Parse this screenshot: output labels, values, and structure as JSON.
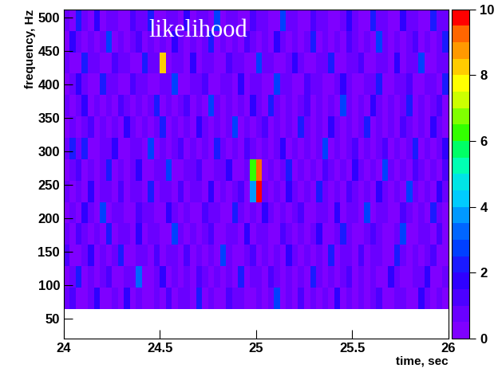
{
  "chart_data": {
    "type": "heatmap",
    "title": "likelihood",
    "xlabel": "time, sec",
    "ylabel": "frequency, Hz",
    "xlim": [
      24,
      26
    ],
    "ylim": [
      20,
      512
    ],
    "xticks": [
      24,
      24.5,
      25,
      25.5,
      26
    ],
    "yticks": [
      50,
      100,
      150,
      200,
      250,
      300,
      350,
      400,
      450,
      500
    ],
    "x_bins": [
      24,
      24.03125,
      24.0625,
      24.09375,
      24.125,
      24.15625,
      24.1875,
      24.21875,
      24.25,
      24.28125,
      24.3125,
      24.34375,
      24.375,
      24.40625,
      24.4375,
      24.46875,
      24.5,
      24.53125,
      24.5625,
      24.59375,
      24.625,
      24.65625,
      24.6875,
      24.71875,
      24.75,
      24.78125,
      24.8125,
      24.84375,
      24.875,
      24.90625,
      24.9375,
      24.96875,
      25,
      25.03125,
      25.0625,
      25.09375,
      25.125,
      25.15625,
      25.1875,
      25.21875,
      25.25,
      25.28125,
      25.3125,
      25.34375,
      25.375,
      25.40625,
      25.4375,
      25.46875,
      25.5,
      25.53125,
      25.5625,
      25.59375,
      25.625,
      25.65625,
      25.6875,
      25.71875,
      25.75,
      25.78125,
      25.8125,
      25.84375,
      25.875,
      25.90625,
      25.9375,
      25.96875,
      26
    ],
    "y_bins": [
      64,
      96,
      128,
      160,
      192,
      224,
      256,
      288,
      320,
      352,
      384,
      416,
      448,
      480,
      512
    ],
    "cells": [
      [
        0.6,
        1.2,
        0.3,
        0.4,
        0.5,
        1.8,
        0.4,
        0.3,
        0.5,
        0.4,
        1.5,
        0.3,
        0.6,
        0.4,
        0.3,
        0.5,
        0.4,
        1.1,
        0.3,
        0.5,
        0.6,
        0.4,
        2.1,
        0.3,
        0.5,
        0.4,
        0.3,
        1.4,
        0.5,
        0.6,
        0.4,
        0.3,
        0.5,
        0.4,
        0.6,
        2.6,
        0.3,
        0.5,
        0.4,
        1.2,
        0.3,
        0.5,
        0.4,
        0.6,
        0.3,
        1.6,
        0.4,
        0.5,
        0.3,
        0.6,
        0.4,
        0.5,
        1.3,
        0.4,
        0.3,
        0.5,
        0.6,
        0.4,
        0.3,
        1.9,
        0.5,
        0.4,
        0.6,
        0.3
      ],
      [
        0.4,
        0.5,
        2.4,
        0.3,
        0.6,
        0.4,
        0.5,
        1.3,
        0.3,
        0.4,
        0.6,
        0.5,
        3.1,
        0.4,
        0.3,
        0.5,
        1.7,
        0.4,
        0.5,
        0.3,
        0.6,
        0.4,
        1.2,
        0.5,
        0.3,
        0.5,
        0.4,
        0.6,
        0.3,
        2.0,
        0.4,
        0.5,
        0.6,
        0.3,
        1.4,
        0.5,
        0.4,
        0.6,
        0.3,
        0.5,
        0.4,
        2.2,
        0.5,
        0.3,
        0.6,
        0.4,
        0.5,
        1.1,
        0.3,
        0.5,
        0.4,
        0.6,
        0.3,
        0.4,
        1.8,
        0.5,
        0.4,
        0.3,
        0.6,
        0.5,
        1.5,
        0.4,
        0.3,
        0.6
      ],
      [
        1.1,
        0.4,
        0.3,
        0.5,
        1.6,
        0.4,
        0.6,
        0.3,
        0.5,
        2.3,
        0.4,
        0.3,
        0.6,
        0.5,
        0.4,
        1.2,
        0.3,
        0.5,
        0.6,
        0.4,
        1.4,
        0.3,
        0.5,
        0.4,
        0.6,
        0.3,
        2.8,
        0.5,
        0.4,
        0.3,
        0.6,
        1.3,
        0.4,
        0.5,
        0.3,
        0.6,
        0.4,
        1.7,
        0.5,
        0.3,
        0.6,
        0.4,
        0.5,
        0.3,
        2.1,
        0.4,
        0.6,
        0.5,
        0.3,
        1.2,
        0.4,
        0.5,
        0.6,
        0.3,
        0.4,
        2.4,
        0.5,
        0.3,
        0.6,
        0.4,
        0.5,
        1.1,
        0.3,
        0.4
      ],
      [
        0.5,
        0.3,
        1.3,
        0.6,
        0.4,
        0.5,
        0.3,
        2.0,
        0.4,
        0.6,
        0.5,
        0.3,
        1.5,
        0.4,
        0.5,
        0.6,
        0.3,
        0.4,
        2.5,
        0.5,
        0.3,
        0.6,
        0.4,
        0.5,
        1.2,
        0.3,
        0.4,
        0.6,
        0.5,
        0.3,
        1.8,
        0.4,
        0.5,
        0.6,
        0.3,
        0.4,
        1.1,
        0.5,
        0.3,
        0.6,
        0.4,
        0.5,
        1.6,
        0.3,
        0.4,
        0.6,
        2.2,
        0.5,
        0.3,
        0.4,
        0.5,
        1.3,
        0.6,
        0.3,
        0.4,
        0.5,
        2.7,
        0.4,
        0.3,
        0.5,
        0.6,
        0.4,
        1.4,
        0.3
      ],
      [
        0.3,
        0.6,
        0.4,
        1.5,
        0.5,
        0.3,
        2.9,
        0.4,
        0.6,
        0.5,
        0.3,
        0.4,
        1.2,
        0.6,
        0.5,
        0.3,
        0.4,
        1.9,
        0.6,
        0.3,
        0.5,
        0.4,
        0.3,
        1.4,
        0.5,
        0.6,
        0.4,
        0.3,
        2.3,
        0.5,
        0.4,
        0.6,
        0.3,
        1.6,
        0.5,
        0.4,
        0.6,
        0.3,
        0.5,
        1.1,
        0.4,
        0.3,
        0.6,
        0.5,
        0.4,
        1.8,
        0.3,
        0.6,
        0.5,
        0.4,
        2.6,
        0.3,
        0.5,
        0.6,
        0.4,
        0.3,
        1.3,
        0.5,
        0.4,
        0.6,
        0.3,
        2.0,
        0.5,
        0.4
      ],
      [
        0.6,
        0.4,
        0.5,
        0.3,
        1.7,
        0.4,
        0.6,
        0.5,
        0.3,
        1.3,
        0.4,
        0.6,
        0.5,
        0.3,
        2.1,
        0.4,
        0.5,
        0.6,
        0.3,
        1.4,
        0.4,
        0.5,
        0.6,
        0.3,
        1.9,
        0.4,
        0.5,
        0.3,
        0.6,
        1.2,
        0.4,
        3.6,
        9.8,
        0.5,
        0.3,
        0.6,
        0.4,
        1.5,
        0.5,
        0.3,
        0.6,
        0.4,
        2.4,
        0.5,
        0.3,
        0.6,
        0.4,
        1.1,
        0.5,
        0.3,
        0.6,
        0.4,
        1.8,
        0.5,
        0.3,
        0.6,
        0.4,
        2.9,
        0.5,
        0.3,
        0.6,
        0.4,
        1.6,
        0.5
      ],
      [
        0.4,
        0.5,
        1.4,
        0.3,
        0.6,
        0.4,
        0.5,
        2.2,
        0.3,
        0.6,
        0.4,
        0.5,
        1.6,
        0.3,
        0.4,
        0.6,
        0.5,
        2.7,
        0.3,
        0.4,
        0.6,
        0.5,
        1.3,
        0.4,
        0.3,
        0.6,
        0.5,
        1.8,
        0.4,
        0.3,
        0.6,
        6.0,
        9.4,
        0.4,
        0.6,
        0.3,
        0.5,
        2.0,
        0.4,
        0.6,
        0.3,
        0.5,
        0.4,
        1.2,
        0.6,
        0.3,
        0.5,
        0.4,
        1.7,
        0.6,
        0.3,
        0.5,
        0.4,
        2.5,
        0.6,
        0.3,
        0.5,
        0.4,
        1.1,
        0.6,
        0.3,
        0.5,
        0.4,
        1.4
      ],
      [
        0.5,
        2.1,
        0.6,
        2.3,
        0.4,
        0.3,
        0.5,
        0.6,
        1.5,
        0.4,
        0.3,
        0.5,
        0.6,
        0.4,
        2.6,
        0.3,
        0.5,
        0.4,
        0.6,
        1.2,
        0.3,
        0.5,
        0.4,
        0.6,
        0.3,
        2.0,
        0.5,
        0.4,
        0.6,
        0.3,
        1.3,
        0.5,
        0.4,
        0.6,
        0.3,
        0.5,
        1.9,
        0.4,
        0.6,
        0.3,
        0.5,
        0.4,
        0.6,
        2.8,
        0.3,
        0.5,
        0.4,
        0.6,
        1.4,
        0.3,
        0.5,
        0.4,
        0.6,
        1.1,
        0.3,
        0.5,
        0.4,
        0.6,
        2.2,
        0.3,
        0.5,
        0.4,
        0.6,
        1.7
      ],
      [
        0.3,
        0.5,
        0.4,
        0.6,
        1.2,
        0.3,
        0.5,
        0.4,
        0.6,
        0.3,
        1.8,
        0.5,
        0.4,
        0.6,
        0.3,
        0.5,
        2.4,
        0.4,
        0.6,
        0.3,
        0.5,
        0.4,
        1.5,
        0.6,
        0.3,
        0.5,
        0.4,
        0.6,
        2.9,
        0.3,
        0.5,
        0.4,
        0.6,
        1.3,
        0.3,
        0.5,
        0.4,
        0.6,
        0.3,
        2.1,
        0.5,
        0.4,
        0.6,
        0.3,
        1.6,
        0.5,
        0.4,
        0.6,
        0.3,
        0.5,
        2.3,
        0.4,
        0.6,
        0.3,
        0.5,
        0.4,
        1.2,
        0.6,
        0.3,
        0.5,
        0.4,
        1.9,
        0.6,
        0.3
      ],
      [
        0.6,
        0.3,
        0.5,
        1.9,
        0.4,
        0.6,
        0.3,
        0.5,
        0.4,
        1.4,
        0.6,
        0.3,
        0.5,
        0.4,
        0.6,
        2.2,
        0.3,
        0.5,
        0.4,
        0.6,
        1.1,
        0.3,
        0.5,
        0.4,
        2.6,
        0.6,
        0.3,
        0.5,
        0.4,
        0.6,
        0.3,
        1.5,
        0.5,
        0.4,
        2.0,
        0.6,
        0.3,
        0.5,
        0.4,
        0.6,
        1.3,
        0.3,
        0.5,
        0.4,
        0.6,
        0.3,
        2.7,
        0.5,
        0.4,
        0.6,
        0.3,
        1.7,
        0.5,
        0.4,
        0.6,
        0.3,
        0.5,
        2.1,
        0.4,
        0.6,
        0.3,
        0.5,
        1.2,
        0.4
      ],
      [
        0.4,
        0.6,
        1.6,
        0.5,
        0.3,
        0.4,
        2.3,
        0.6,
        0.5,
        0.3,
        0.4,
        1.2,
        0.6,
        0.5,
        0.3,
        0.4,
        0.6,
        0.5,
        2.8,
        0.3,
        0.4,
        0.6,
        0.5,
        1.4,
        0.3,
        0.4,
        0.6,
        0.5,
        0.3,
        1.8,
        0.4,
        0.6,
        0.5,
        0.3,
        0.4,
        2.5,
        0.6,
        0.5,
        0.3,
        0.4,
        1.1,
        0.6,
        0.5,
        0.3,
        0.4,
        0.6,
        1.9,
        0.5,
        0.3,
        0.4,
        0.6,
        0.5,
        2.2,
        0.3,
        0.4,
        0.6,
        0.5,
        1.3,
        0.3,
        0.4,
        0.6,
        0.5,
        0.3,
        2.0
      ],
      [
        0.5,
        0.4,
        0.3,
        2.0,
        0.6,
        0.5,
        0.4,
        0.3,
        1.3,
        0.6,
        0.5,
        0.4,
        0.3,
        2.4,
        0.6,
        0.5,
        8.1,
        0.3,
        0.6,
        0.5,
        0.4,
        1.5,
        0.3,
        0.6,
        0.5,
        0.4,
        0.3,
        1.1,
        0.6,
        0.5,
        0.4,
        0.3,
        2.7,
        0.6,
        0.5,
        0.4,
        0.3,
        0.6,
        1.6,
        0.5,
        0.4,
        0.3,
        0.6,
        0.5,
        2.1,
        0.4,
        0.3,
        0.6,
        0.5,
        1.2,
        0.4,
        0.3,
        0.6,
        0.5,
        0.4,
        1.8,
        0.3,
        0.6,
        0.5,
        2.5,
        0.4,
        0.3,
        0.6,
        0.5
      ],
      [
        0.3,
        1.5,
        0.6,
        0.4,
        0.5,
        0.3,
        0.6,
        2.6,
        0.4,
        0.5,
        0.3,
        0.6,
        1.2,
        0.4,
        0.5,
        0.3,
        0.6,
        0.4,
        1.9,
        0.5,
        0.3,
        0.6,
        0.4,
        0.5,
        2.3,
        0.3,
        0.6,
        0.4,
        0.5,
        0.3,
        1.4,
        0.6,
        0.4,
        0.5,
        0.3,
        1.7,
        0.6,
        0.4,
        0.5,
        0.3,
        0.6,
        2.0,
        0.4,
        0.5,
        0.3,
        0.6,
        0.4,
        1.1,
        0.5,
        0.3,
        0.6,
        0.4,
        2.8,
        0.5,
        0.3,
        0.6,
        0.4,
        0.5,
        1.3,
        0.3,
        0.6,
        0.4,
        0.5,
        2.2
      ],
      [
        0.6,
        0.4,
        2.2,
        0.5,
        0.3,
        1.6,
        0.4,
        0.6,
        0.5,
        0.3,
        0.4,
        1.3,
        0.6,
        0.5,
        2.0,
        0.3,
        0.4,
        0.6,
        0.5,
        0.3,
        1.7,
        0.4,
        0.6,
        0.5,
        0.3,
        2.5,
        0.4,
        0.6,
        0.5,
        0.3,
        0.4,
        1.2,
        0.6,
        0.5,
        0.3,
        0.4,
        2.9,
        0.6,
        0.5,
        0.3,
        0.4,
        1.4,
        0.6,
        0.5,
        0.3,
        0.4,
        0.6,
        1.8,
        0.5,
        0.3,
        0.4,
        2.1,
        0.6,
        0.5,
        0.3,
        0.4,
        1.5,
        0.6,
        0.5,
        0.3,
        0.4,
        2.4,
        0.6,
        0.5
      ]
    ],
    "colorbar_range": [
      0,
      10
    ],
    "colorbar_ticks": [
      0,
      2,
      4,
      6,
      8,
      10
    ]
  }
}
